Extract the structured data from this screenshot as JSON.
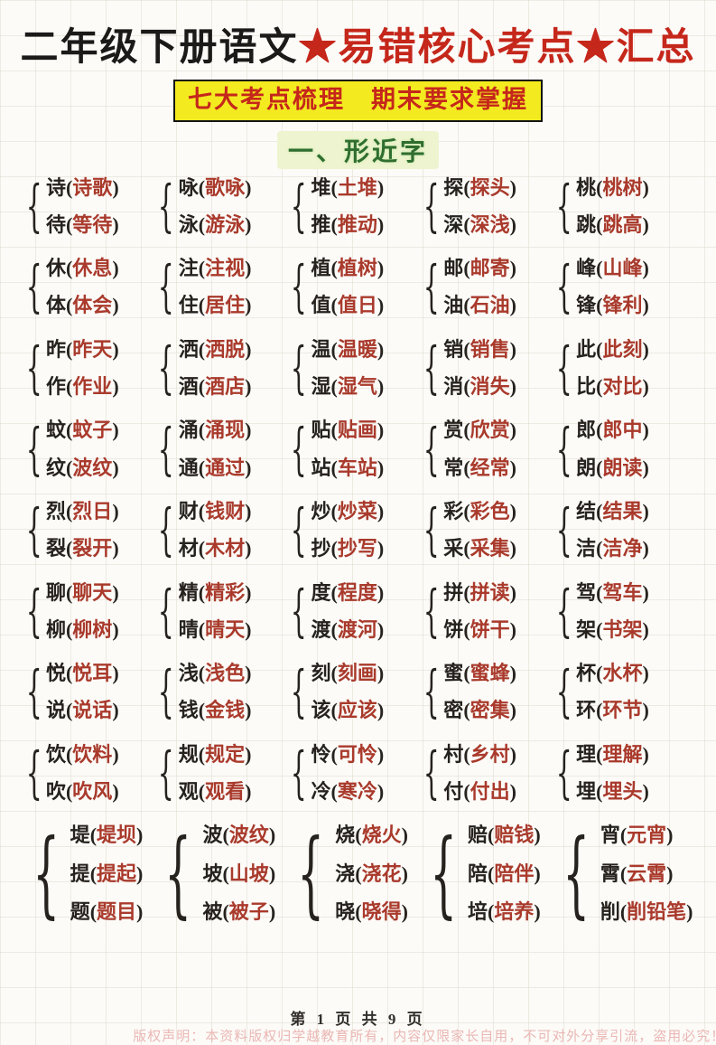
{
  "header": {
    "title_black": "二年级下册语文",
    "title_red": "★易错核心考点★汇总",
    "subtitle": "七大考点梳理　期末要求掌握",
    "section_heading": "一、形近字"
  },
  "colors": {
    "title_red": "#c5271b",
    "word_red": "#a93a2c",
    "highlight_yellow": "#f3ea1f",
    "heading_green": "#2f6e2f"
  },
  "groups": [
    {
      "items": [
        {
          "char": "诗",
          "word": "诗歌"
        },
        {
          "char": "待",
          "word": "等待"
        }
      ]
    },
    {
      "items": [
        {
          "char": "咏",
          "word": "歌咏"
        },
        {
          "char": "泳",
          "word": "游泳"
        }
      ]
    },
    {
      "items": [
        {
          "char": "堆",
          "word": "土堆"
        },
        {
          "char": "推",
          "word": "推动"
        }
      ]
    },
    {
      "items": [
        {
          "char": "探",
          "word": "探头"
        },
        {
          "char": "深",
          "word": "深浅"
        }
      ]
    },
    {
      "items": [
        {
          "char": "桃",
          "word": "桃树"
        },
        {
          "char": "跳",
          "word": "跳高"
        }
      ]
    },
    {
      "items": [
        {
          "char": "休",
          "word": "休息"
        },
        {
          "char": "体",
          "word": "体会"
        }
      ]
    },
    {
      "items": [
        {
          "char": "注",
          "word": "注视"
        },
        {
          "char": "住",
          "word": "居住"
        }
      ]
    },
    {
      "items": [
        {
          "char": "植",
          "word": "植树"
        },
        {
          "char": "值",
          "word": "值日"
        }
      ]
    },
    {
      "items": [
        {
          "char": "邮",
          "word": "邮寄"
        },
        {
          "char": "油",
          "word": "石油"
        }
      ]
    },
    {
      "items": [
        {
          "char": "峰",
          "word": "山峰"
        },
        {
          "char": "锋",
          "word": "锋利"
        }
      ]
    },
    {
      "items": [
        {
          "char": "昨",
          "word": "昨天"
        },
        {
          "char": "作",
          "word": "作业"
        }
      ]
    },
    {
      "items": [
        {
          "char": "洒",
          "word": "洒脱"
        },
        {
          "char": "酒",
          "word": "酒店"
        }
      ]
    },
    {
      "items": [
        {
          "char": "温",
          "word": "温暖"
        },
        {
          "char": "湿",
          "word": "湿气"
        }
      ]
    },
    {
      "items": [
        {
          "char": "销",
          "word": "销售"
        },
        {
          "char": "消",
          "word": "消失"
        }
      ]
    },
    {
      "items": [
        {
          "char": "此",
          "word": "此刻"
        },
        {
          "char": "比",
          "word": "对比"
        }
      ]
    },
    {
      "items": [
        {
          "char": "蚊",
          "word": "蚊子"
        },
        {
          "char": "纹",
          "word": "波纹"
        }
      ]
    },
    {
      "items": [
        {
          "char": "涌",
          "word": "涌现"
        },
        {
          "char": "通",
          "word": "通过"
        }
      ]
    },
    {
      "items": [
        {
          "char": "贴",
          "word": "贴画"
        },
        {
          "char": "站",
          "word": "车站"
        }
      ]
    },
    {
      "items": [
        {
          "char": "赏",
          "word": "欣赏"
        },
        {
          "char": "常",
          "word": "经常"
        }
      ]
    },
    {
      "items": [
        {
          "char": "郎",
          "word": "郎中"
        },
        {
          "char": "朗",
          "word": "朗读"
        }
      ]
    },
    {
      "items": [
        {
          "char": "烈",
          "word": "烈日"
        },
        {
          "char": "裂",
          "word": "裂开"
        }
      ]
    },
    {
      "items": [
        {
          "char": "财",
          "word": "钱财"
        },
        {
          "char": "材",
          "word": "木材"
        }
      ]
    },
    {
      "items": [
        {
          "char": "炒",
          "word": "炒菜"
        },
        {
          "char": "抄",
          "word": "抄写"
        }
      ]
    },
    {
      "items": [
        {
          "char": "彩",
          "word": "彩色"
        },
        {
          "char": "采",
          "word": "采集"
        }
      ]
    },
    {
      "items": [
        {
          "char": "结",
          "word": "结果"
        },
        {
          "char": "洁",
          "word": "洁净"
        }
      ]
    },
    {
      "items": [
        {
          "char": "聊",
          "word": "聊天"
        },
        {
          "char": "柳",
          "word": "柳树"
        }
      ]
    },
    {
      "items": [
        {
          "char": "精",
          "word": "精彩"
        },
        {
          "char": "晴",
          "word": "晴天"
        }
      ]
    },
    {
      "items": [
        {
          "char": "度",
          "word": "程度"
        },
        {
          "char": "渡",
          "word": "渡河"
        }
      ]
    },
    {
      "items": [
        {
          "char": "拼",
          "word": "拼读"
        },
        {
          "char": "饼",
          "word": "饼干"
        }
      ]
    },
    {
      "items": [
        {
          "char": "驾",
          "word": "驾车"
        },
        {
          "char": "架",
          "word": "书架"
        }
      ]
    },
    {
      "items": [
        {
          "char": "悦",
          "word": "悦耳"
        },
        {
          "char": "说",
          "word": "说话"
        }
      ]
    },
    {
      "items": [
        {
          "char": "浅",
          "word": "浅色"
        },
        {
          "char": "钱",
          "word": "金钱"
        }
      ]
    },
    {
      "items": [
        {
          "char": "刻",
          "word": "刻画"
        },
        {
          "char": "该",
          "word": "应该"
        }
      ]
    },
    {
      "items": [
        {
          "char": "蜜",
          "word": "蜜蜂"
        },
        {
          "char": "密",
          "word": "密集"
        }
      ]
    },
    {
      "items": [
        {
          "char": "杯",
          "word": "水杯"
        },
        {
          "char": "环",
          "word": "环节"
        }
      ]
    },
    {
      "items": [
        {
          "char": "饮",
          "word": "饮料"
        },
        {
          "char": "吹",
          "word": "吹风"
        }
      ]
    },
    {
      "items": [
        {
          "char": "规",
          "word": "规定"
        },
        {
          "char": "观",
          "word": "观看"
        }
      ]
    },
    {
      "items": [
        {
          "char": "怜",
          "word": "可怜"
        },
        {
          "char": "冷",
          "word": "寒冷"
        }
      ]
    },
    {
      "items": [
        {
          "char": "村",
          "word": "乡村"
        },
        {
          "char": "付",
          "word": "付出"
        }
      ]
    },
    {
      "items": [
        {
          "char": "理",
          "word": "理解"
        },
        {
          "char": "埋",
          "word": "埋头"
        }
      ]
    },
    {
      "items": [
        {
          "char": "堤",
          "word": "堤坝"
        },
        {
          "char": "提",
          "word": "提起"
        },
        {
          "char": "题",
          "word": "题目"
        }
      ]
    },
    {
      "items": [
        {
          "char": "波",
          "word": "波纹"
        },
        {
          "char": "坡",
          "word": "山坡"
        },
        {
          "char": "被",
          "word": "被子"
        }
      ]
    },
    {
      "items": [
        {
          "char": "烧",
          "word": "烧火"
        },
        {
          "char": "浇",
          "word": "浇花"
        },
        {
          "char": "晓",
          "word": "晓得"
        }
      ]
    },
    {
      "items": [
        {
          "char": "赔",
          "word": "赔钱"
        },
        {
          "char": "陪",
          "word": "陪伴"
        },
        {
          "char": "培",
          "word": "培养"
        }
      ]
    },
    {
      "items": [
        {
          "char": "宵",
          "word": "元宵"
        },
        {
          "char": "霄",
          "word": "云霄"
        },
        {
          "char": "削",
          "word": "削铅笔"
        }
      ]
    }
  ],
  "footer": {
    "page_label": "第 1 页 共 9 页",
    "copyright": "版权声明：本资料版权归学越教育所有，内容仅限家长自用，不可对外分享引流，盗用必究！"
  }
}
